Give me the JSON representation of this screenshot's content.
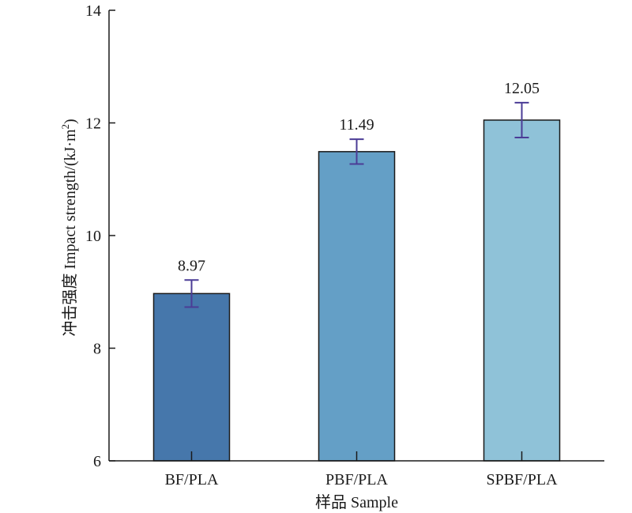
{
  "chart_data": {
    "type": "bar",
    "title": "",
    "xlabel": "样品 Sample",
    "ylabel": "冲击强度 Impact strength/(kJ·m²)",
    "ylim": [
      6,
      14
    ],
    "yticks": [
      6,
      8,
      10,
      12,
      14
    ],
    "ytick_labels": [
      "6",
      "8",
      "10",
      "12",
      "14"
    ],
    "categories": [
      "BF/PLA",
      "PBF/PLA",
      "SPBF/PLA"
    ],
    "values": [
      8.97,
      11.49,
      12.05
    ],
    "value_labels": [
      "8.97",
      "11.49",
      "12.05"
    ],
    "errors": [
      0.24,
      0.22,
      0.31
    ],
    "bar_colors": [
      "#4677ab",
      "#649fc6",
      "#8fc2d8"
    ],
    "error_bar_color": "#4b3c96",
    "grid": false,
    "legend": "none"
  }
}
